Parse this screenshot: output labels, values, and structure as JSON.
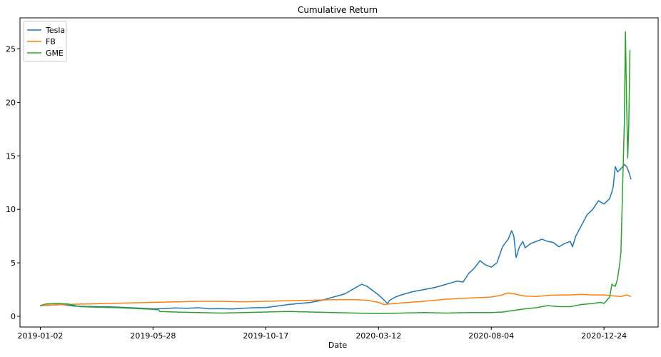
{
  "chart_data": {
    "type": "line",
    "title": "Cumulative Return",
    "xlabel": "Date",
    "ylabel": "",
    "grid": false,
    "legend_position": "top-left",
    "x_tick_labels": [
      "2019-01-02",
      "2019-05-28",
      "2019-10-17",
      "2020-03-12",
      "2020-08-04",
      "2020-12-24"
    ],
    "x_tick_positions": [
      0,
      100,
      200,
      300,
      400,
      500
    ],
    "x_range": [
      -18,
      548
    ],
    "y_ticks": [
      0,
      5,
      10,
      15,
      20,
      25
    ],
    "ylim": [
      -1.0,
      27.9
    ],
    "series": [
      {
        "name": "Tesla",
        "color": "#1f77b4",
        "points": [
          [
            0,
            1.0
          ],
          [
            10,
            1.05
          ],
          [
            20,
            1.1
          ],
          [
            30,
            0.95
          ],
          [
            40,
            0.93
          ],
          [
            50,
            0.9
          ],
          [
            60,
            0.88
          ],
          [
            70,
            0.85
          ],
          [
            80,
            0.8
          ],
          [
            90,
            0.75
          ],
          [
            100,
            0.7
          ],
          [
            110,
            0.72
          ],
          [
            120,
            0.78
          ],
          [
            130,
            0.75
          ],
          [
            140,
            0.8
          ],
          [
            150,
            0.7
          ],
          [
            160,
            0.72
          ],
          [
            170,
            0.68
          ],
          [
            180,
            0.75
          ],
          [
            190,
            0.8
          ],
          [
            200,
            0.82
          ],
          [
            210,
            0.95
          ],
          [
            220,
            1.1
          ],
          [
            230,
            1.2
          ],
          [
            240,
            1.3
          ],
          [
            250,
            1.5
          ],
          [
            260,
            1.8
          ],
          [
            270,
            2.1
          ],
          [
            280,
            2.7
          ],
          [
            285,
            3.0
          ],
          [
            290,
            2.8
          ],
          [
            295,
            2.4
          ],
          [
            300,
            2.0
          ],
          [
            305,
            1.5
          ],
          [
            308,
            1.2
          ],
          [
            310,
            1.5
          ],
          [
            315,
            1.8
          ],
          [
            320,
            2.0
          ],
          [
            330,
            2.3
          ],
          [
            340,
            2.5
          ],
          [
            350,
            2.7
          ],
          [
            360,
            3.0
          ],
          [
            370,
            3.3
          ],
          [
            375,
            3.2
          ],
          [
            380,
            4.0
          ],
          [
            385,
            4.5
          ],
          [
            390,
            5.2
          ],
          [
            395,
            4.8
          ],
          [
            400,
            4.6
          ],
          [
            405,
            5.0
          ],
          [
            410,
            6.5
          ],
          [
            415,
            7.2
          ],
          [
            418,
            8.0
          ],
          [
            420,
            7.5
          ],
          [
            422,
            5.5
          ],
          [
            425,
            6.5
          ],
          [
            428,
            7.0
          ],
          [
            430,
            6.4
          ],
          [
            435,
            6.8
          ],
          [
            440,
            7.0
          ],
          [
            445,
            7.2
          ],
          [
            450,
            7.0
          ],
          [
            455,
            6.9
          ],
          [
            460,
            6.5
          ],
          [
            465,
            6.8
          ],
          [
            470,
            7.0
          ],
          [
            472,
            6.5
          ],
          [
            475,
            7.5
          ],
          [
            480,
            8.5
          ],
          [
            485,
            9.5
          ],
          [
            490,
            10.0
          ],
          [
            495,
            10.8
          ],
          [
            500,
            10.5
          ],
          [
            505,
            11.0
          ],
          [
            508,
            12.0
          ],
          [
            510,
            14.0
          ],
          [
            512,
            13.5
          ],
          [
            515,
            13.8
          ],
          [
            518,
            14.2
          ],
          [
            520,
            14.0
          ],
          [
            522,
            13.5
          ],
          [
            524,
            12.8
          ]
        ]
      },
      {
        "name": "FB",
        "color": "#ff7f0e",
        "points": [
          [
            0,
            1.0
          ],
          [
            20,
            1.1
          ],
          [
            40,
            1.15
          ],
          [
            60,
            1.2
          ],
          [
            80,
            1.25
          ],
          [
            100,
            1.3
          ],
          [
            120,
            1.35
          ],
          [
            140,
            1.4
          ],
          [
            160,
            1.4
          ],
          [
            180,
            1.35
          ],
          [
            200,
            1.4
          ],
          [
            220,
            1.45
          ],
          [
            240,
            1.5
          ],
          [
            260,
            1.55
          ],
          [
            280,
            1.55
          ],
          [
            290,
            1.5
          ],
          [
            300,
            1.3
          ],
          [
            305,
            1.1
          ],
          [
            310,
            1.15
          ],
          [
            320,
            1.25
          ],
          [
            340,
            1.4
          ],
          [
            360,
            1.6
          ],
          [
            380,
            1.7
          ],
          [
            400,
            1.8
          ],
          [
            410,
            2.0
          ],
          [
            415,
            2.2
          ],
          [
            420,
            2.1
          ],
          [
            430,
            1.9
          ],
          [
            440,
            1.85
          ],
          [
            450,
            1.95
          ],
          [
            460,
            2.0
          ],
          [
            470,
            2.0
          ],
          [
            480,
            2.05
          ],
          [
            490,
            2.0
          ],
          [
            500,
            2.0
          ],
          [
            510,
            1.9
          ],
          [
            515,
            1.85
          ],
          [
            520,
            2.0
          ],
          [
            524,
            1.85
          ]
        ]
      },
      {
        "name": "GME",
        "color": "#2ca02c",
        "points": [
          [
            0,
            1.0
          ],
          [
            5,
            1.15
          ],
          [
            15,
            1.2
          ],
          [
            25,
            1.15
          ],
          [
            35,
            0.9
          ],
          [
            50,
            0.85
          ],
          [
            70,
            0.8
          ],
          [
            90,
            0.7
          ],
          [
            100,
            0.65
          ],
          [
            105,
            0.6
          ],
          [
            106,
            0.45
          ],
          [
            120,
            0.4
          ],
          [
            140,
            0.35
          ],
          [
            160,
            0.3
          ],
          [
            180,
            0.35
          ],
          [
            200,
            0.4
          ],
          [
            220,
            0.45
          ],
          [
            240,
            0.4
          ],
          [
            260,
            0.35
          ],
          [
            280,
            0.3
          ],
          [
            300,
            0.25
          ],
          [
            320,
            0.3
          ],
          [
            340,
            0.35
          ],
          [
            360,
            0.3
          ],
          [
            380,
            0.35
          ],
          [
            400,
            0.35
          ],
          [
            410,
            0.4
          ],
          [
            420,
            0.55
          ],
          [
            430,
            0.7
          ],
          [
            440,
            0.8
          ],
          [
            450,
            1.0
          ],
          [
            460,
            0.9
          ],
          [
            470,
            0.9
          ],
          [
            480,
            1.1
          ],
          [
            490,
            1.2
          ],
          [
            497,
            1.3
          ],
          [
            500,
            1.2
          ],
          [
            505,
            1.8
          ],
          [
            507,
            3.0
          ],
          [
            510,
            2.8
          ],
          [
            512,
            3.5
          ],
          [
            514,
            5.0
          ],
          [
            515,
            6.0
          ],
          [
            517,
            14.0
          ],
          [
            518,
            18.0
          ],
          [
            519,
            26.6
          ],
          [
            520,
            20.0
          ],
          [
            521,
            14.8
          ],
          [
            522,
            18.0
          ],
          [
            523,
            24.9
          ]
        ]
      }
    ]
  }
}
